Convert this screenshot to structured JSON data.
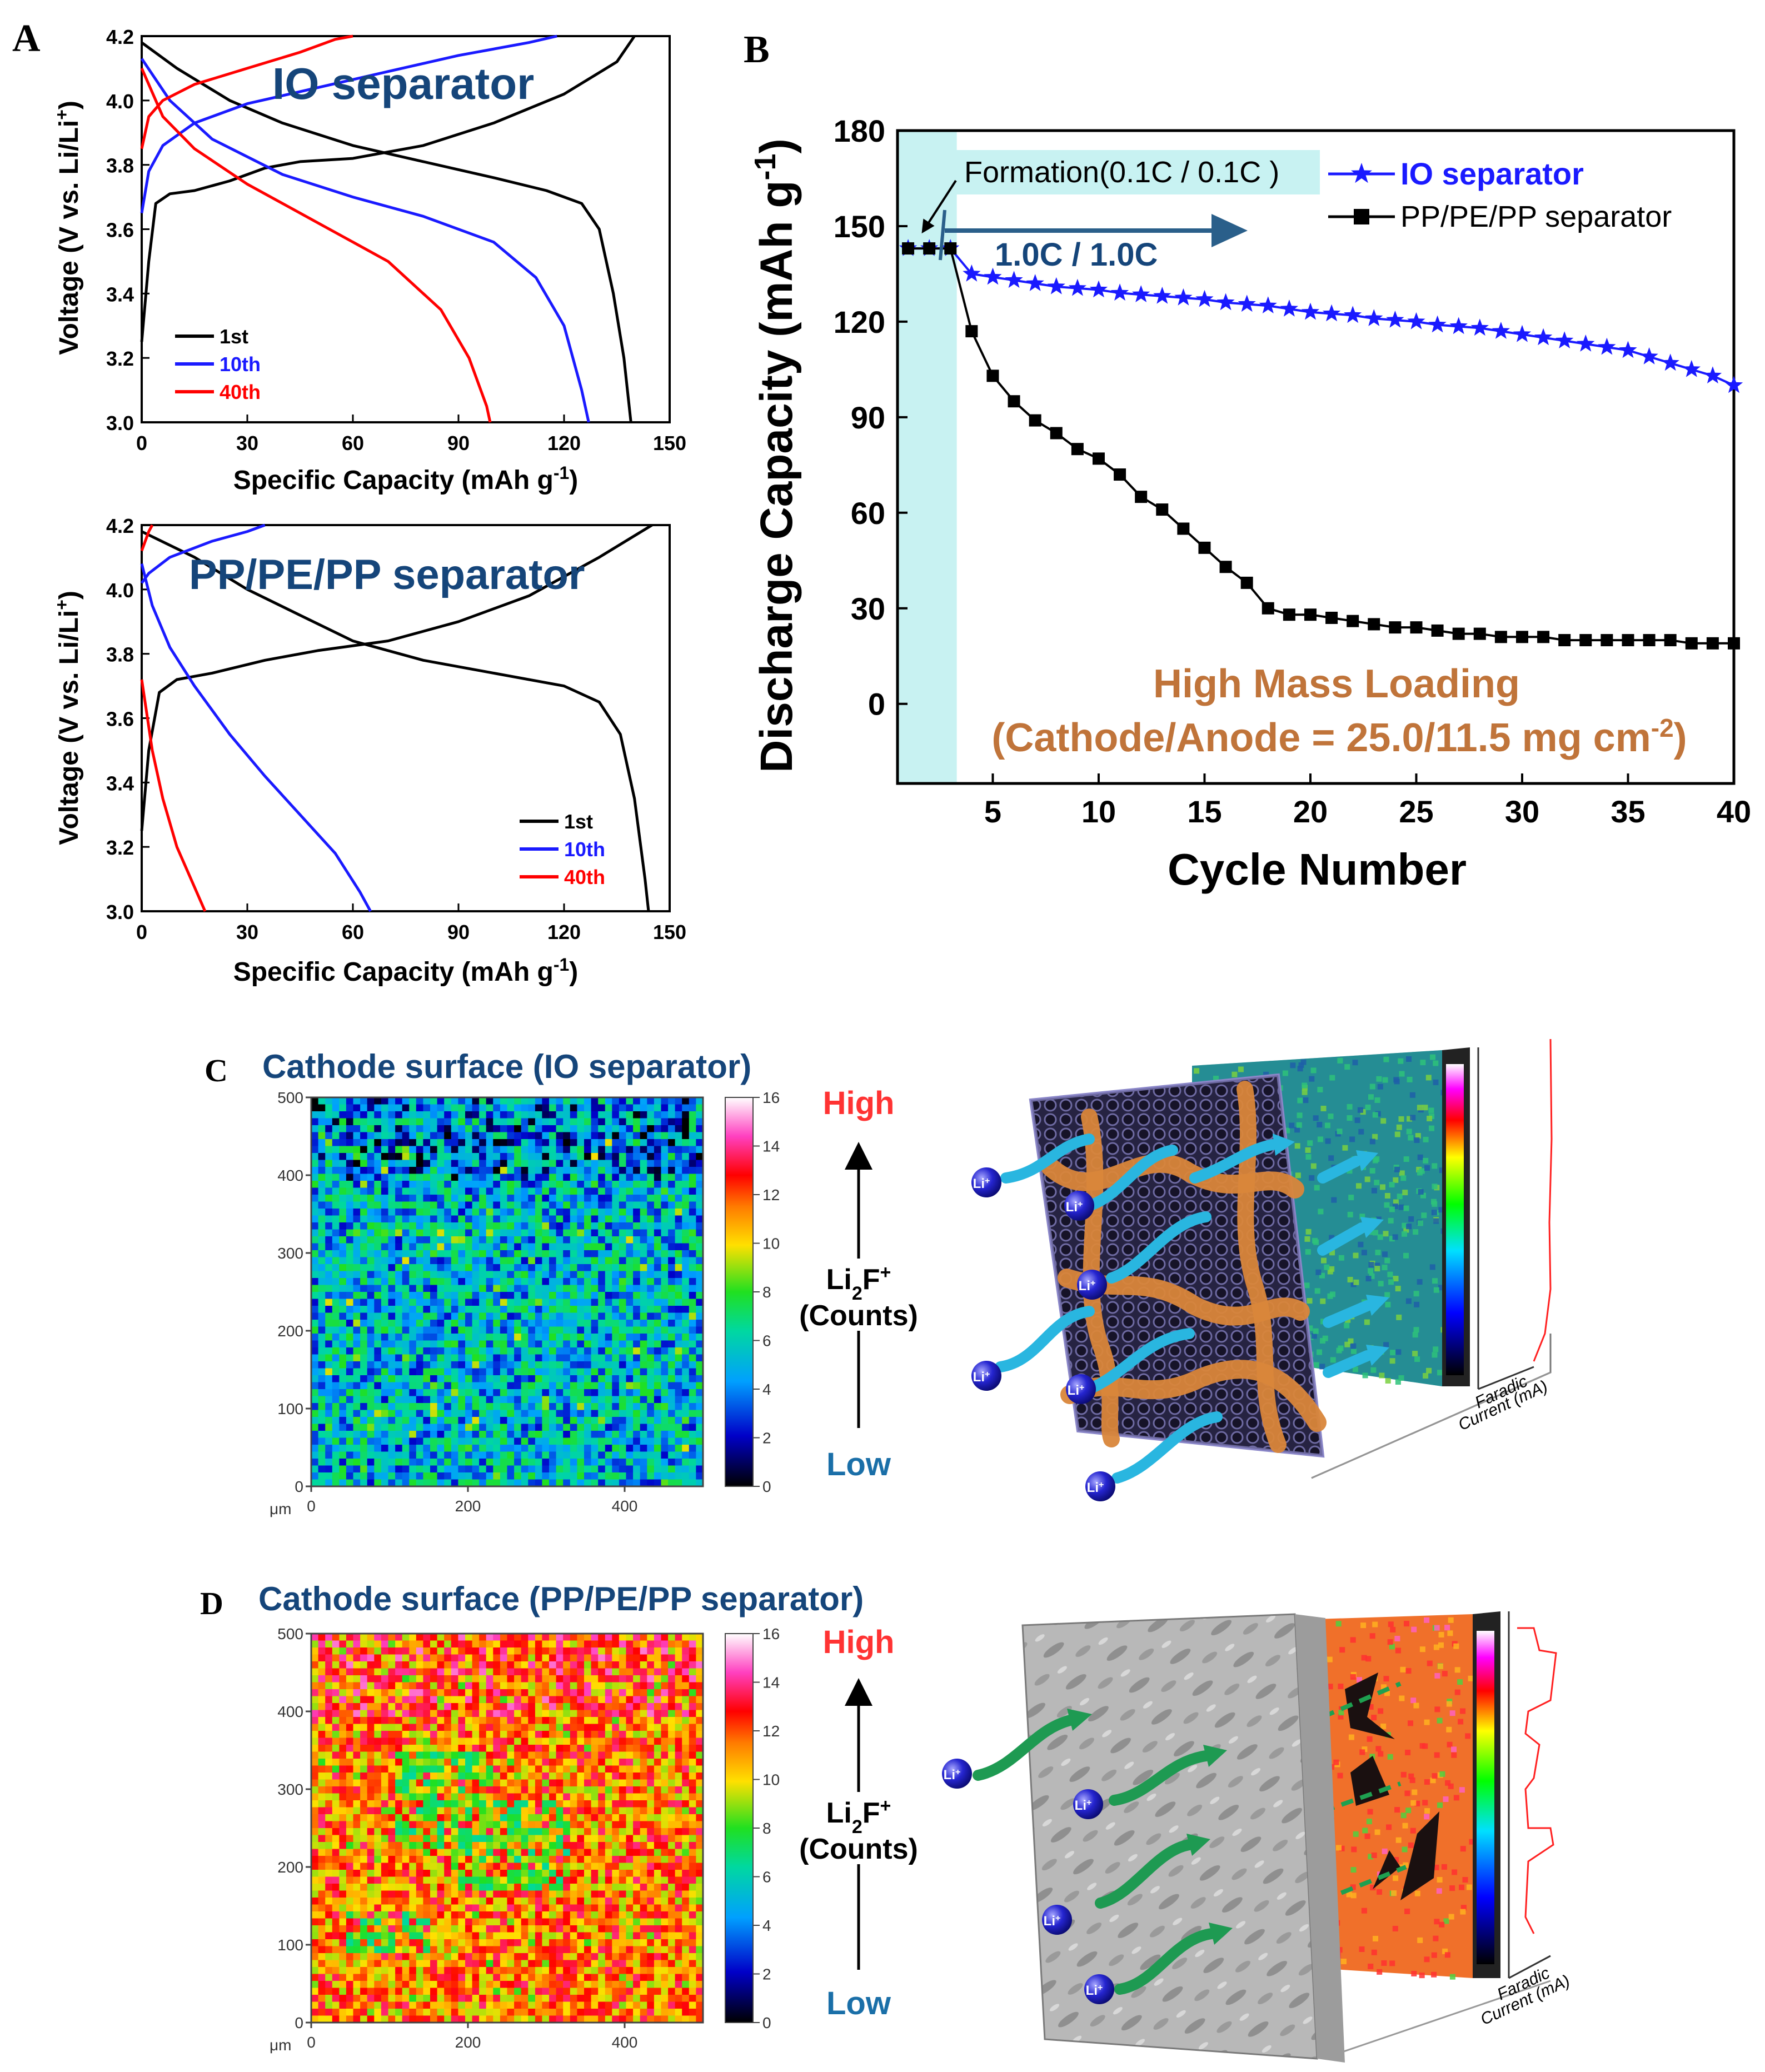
{
  "panel_labels": {
    "a": "A",
    "b": "B",
    "c": "C",
    "d": "D"
  },
  "chart_data": [
    {
      "id": "A1",
      "type": "line",
      "title": "IO separator",
      "xlabel": "Specific Capacity (mAh g",
      "xlabel_sup": "-1",
      "xlabel_end": ")",
      "ylabel": "Voltage (V vs. Li/Li",
      "ylabel_sup": "+",
      "ylabel_end": ")",
      "xlim": [
        0,
        150
      ],
      "ylim": [
        3.0,
        4.2
      ],
      "xticks": [
        0,
        30,
        60,
        90,
        120,
        150
      ],
      "yticks": [
        3.0,
        3.2,
        3.4,
        3.6,
        3.8,
        4.0,
        4.2
      ],
      "legend": {
        "position": "bottom-left",
        "entries": [
          "1st",
          "10th",
          "40th"
        ]
      },
      "series": [
        {
          "name": "1st charge",
          "color": "#000000",
          "points": [
            [
              0,
              3.25
            ],
            [
              2,
              3.5
            ],
            [
              4,
              3.68
            ],
            [
              8,
              3.71
            ],
            [
              15,
              3.72
            ],
            [
              25,
              3.75
            ],
            [
              35,
              3.79
            ],
            [
              45,
              3.81
            ],
            [
              60,
              3.82
            ],
            [
              80,
              3.86
            ],
            [
              100,
              3.93
            ],
            [
              120,
              4.02
            ],
            [
              135,
              4.12
            ],
            [
              140,
              4.2
            ]
          ]
        },
        {
          "name": "1st discharge",
          "color": "#000000",
          "points": [
            [
              0,
              4.18
            ],
            [
              10,
              4.1
            ],
            [
              25,
              4.0
            ],
            [
              40,
              3.93
            ],
            [
              60,
              3.86
            ],
            [
              80,
              3.81
            ],
            [
              100,
              3.76
            ],
            [
              115,
              3.72
            ],
            [
              125,
              3.68
            ],
            [
              130,
              3.6
            ],
            [
              134,
              3.4
            ],
            [
              137,
              3.2
            ],
            [
              139,
              3.0
            ]
          ]
        },
        {
          "name": "10th charge",
          "color": "#1a1aff",
          "points": [
            [
              0,
              3.65
            ],
            [
              2,
              3.78
            ],
            [
              6,
              3.86
            ],
            [
              15,
              3.93
            ],
            [
              30,
              3.99
            ],
            [
              50,
              4.04
            ],
            [
              70,
              4.09
            ],
            [
              90,
              4.14
            ],
            [
              110,
              4.18
            ],
            [
              118,
              4.2
            ]
          ]
        },
        {
          "name": "10th discharge",
          "color": "#1a1aff",
          "points": [
            [
              0,
              4.13
            ],
            [
              8,
              4.0
            ],
            [
              20,
              3.88
            ],
            [
              40,
              3.77
            ],
            [
              60,
              3.7
            ],
            [
              80,
              3.64
            ],
            [
              100,
              3.56
            ],
            [
              112,
              3.45
            ],
            [
              120,
              3.3
            ],
            [
              125,
              3.1
            ],
            [
              127,
              3.0
            ]
          ]
        },
        {
          "name": "40th charge",
          "color": "#ff0000",
          "points": [
            [
              0,
              3.85
            ],
            [
              2,
              3.95
            ],
            [
              6,
              4.0
            ],
            [
              15,
              4.05
            ],
            [
              30,
              4.1
            ],
            [
              45,
              4.15
            ],
            [
              55,
              4.19
            ],
            [
              60,
              4.2
            ]
          ]
        },
        {
          "name": "40th discharge",
          "color": "#ff0000",
          "points": [
            [
              0,
              4.1
            ],
            [
              6,
              3.95
            ],
            [
              15,
              3.85
            ],
            [
              30,
              3.74
            ],
            [
              50,
              3.62
            ],
            [
              70,
              3.5
            ],
            [
              85,
              3.35
            ],
            [
              93,
              3.2
            ],
            [
              98,
              3.05
            ],
            [
              99,
              3.0
            ]
          ]
        }
      ]
    },
    {
      "id": "A2",
      "type": "line",
      "title": "PP/PE/PP separator",
      "xlabel": "Specific Capacity (mAh g",
      "xlabel_sup": "-1",
      "xlabel_end": ")",
      "ylabel": "Voltage (V vs. Li/Li",
      "ylabel_sup": "+",
      "ylabel_end": ")",
      "xlim": [
        0,
        150
      ],
      "ylim": [
        3.0,
        4.2
      ],
      "xticks": [
        0,
        30,
        60,
        90,
        120,
        150
      ],
      "yticks": [
        3.0,
        3.2,
        3.4,
        3.6,
        3.8,
        4.0,
        4.2
      ],
      "legend": {
        "position": "bottom-right",
        "entries": [
          "1st",
          "10th",
          "40th"
        ]
      },
      "series": [
        {
          "name": "1st charge",
          "color": "#000000",
          "points": [
            [
              0,
              3.25
            ],
            [
              2,
              3.5
            ],
            [
              5,
              3.68
            ],
            [
              10,
              3.72
            ],
            [
              20,
              3.74
            ],
            [
              35,
              3.78
            ],
            [
              50,
              3.81
            ],
            [
              70,
              3.84
            ],
            [
              90,
              3.9
            ],
            [
              110,
              3.98
            ],
            [
              130,
              4.1
            ],
            [
              145,
              4.2
            ]
          ]
        },
        {
          "name": "1st discharge",
          "color": "#000000",
          "points": [
            [
              0,
              4.18
            ],
            [
              15,
              4.1
            ],
            [
              30,
              4.0
            ],
            [
              45,
              3.92
            ],
            [
              60,
              3.84
            ],
            [
              80,
              3.78
            ],
            [
              100,
              3.74
            ],
            [
              120,
              3.7
            ],
            [
              130,
              3.65
            ],
            [
              136,
              3.55
            ],
            [
              140,
              3.35
            ],
            [
              143,
              3.1
            ],
            [
              144,
              3.0
            ]
          ]
        },
        {
          "name": "10th charge",
          "color": "#1a1aff",
          "points": [
            [
              0,
              4.02
            ],
            [
              2,
              4.05
            ],
            [
              8,
              4.1
            ],
            [
              20,
              4.15
            ],
            [
              30,
              4.18
            ],
            [
              35,
              4.2
            ]
          ]
        },
        {
          "name": "10th discharge",
          "color": "#1a1aff",
          "points": [
            [
              0,
              4.08
            ],
            [
              3,
              3.95
            ],
            [
              8,
              3.82
            ],
            [
              15,
              3.7
            ],
            [
              25,
              3.55
            ],
            [
              35,
              3.42
            ],
            [
              45,
              3.3
            ],
            [
              55,
              3.18
            ],
            [
              62,
              3.06
            ],
            [
              65,
              3.0
            ]
          ]
        },
        {
          "name": "40th charge",
          "color": "#ff0000",
          "points": [
            [
              0,
              4.12
            ],
            [
              2,
              4.18
            ],
            [
              3,
              4.2
            ]
          ]
        },
        {
          "name": "40th discharge",
          "color": "#ff0000",
          "points": [
            [
              0,
              3.72
            ],
            [
              3,
              3.5
            ],
            [
              6,
              3.35
            ],
            [
              10,
              3.2
            ],
            [
              14,
              3.1
            ],
            [
              18,
              3.0
            ]
          ]
        }
      ]
    },
    {
      "id": "B",
      "type": "line",
      "xlabel": "Cycle Number",
      "ylabel": "Discharge Capacity (mAh g",
      "ylabel_sup": "-1",
      "ylabel_end": ")",
      "xlim": [
        0.5,
        40
      ],
      "ylim": [
        -25,
        180
      ],
      "xticks": [
        5,
        10,
        15,
        20,
        25,
        30,
        35,
        40
      ],
      "yticks": [
        0,
        30,
        60,
        90,
        120,
        150,
        180
      ],
      "formation_label": "Formation(0.1C / 0.1C )",
      "rate_label": "1.0C / 1.0C",
      "annotation_line1": "High Mass Loading",
      "annotation_line2": "(Cathode/Anode = 25.0/11.5 mg cm",
      "annotation_sup": "-2",
      "annotation_end": ")",
      "legend": {
        "position": "top-right",
        "entries": [
          "IO separator",
          "PP/PE/PP separator"
        ]
      },
      "x": [
        1,
        2,
        3,
        4,
        5,
        6,
        7,
        8,
        9,
        10,
        11,
        12,
        13,
        14,
        15,
        16,
        17,
        18,
        19,
        20,
        21,
        22,
        23,
        24,
        25,
        26,
        27,
        28,
        29,
        30,
        31,
        32,
        33,
        34,
        35,
        36,
        37,
        38,
        39,
        40
      ],
      "series": [
        {
          "name": "IO separator",
          "color": "#1a1aff",
          "marker": "star",
          "values": [
            143,
            143,
            143,
            135,
            134,
            133,
            132,
            131,
            130.5,
            130,
            129,
            128.5,
            128,
            127.5,
            127,
            126,
            125.5,
            125,
            124,
            123,
            122.5,
            122,
            121,
            120.5,
            120,
            119,
            118.5,
            118,
            117,
            116,
            115,
            114,
            113,
            112,
            111,
            109,
            107,
            105,
            103,
            100
          ]
        },
        {
          "name": "PP/PE/PP separator",
          "color": "#000000",
          "marker": "square",
          "values": [
            143,
            143,
            143,
            117,
            103,
            95,
            89,
            85,
            80,
            77,
            72,
            65,
            61,
            55,
            49,
            43,
            38,
            30,
            28,
            28,
            27,
            26,
            25,
            24,
            24,
            23,
            22,
            22,
            21,
            21,
            21,
            20,
            20,
            20,
            20,
            20,
            20,
            19,
            19,
            19
          ]
        }
      ]
    },
    {
      "id": "C_map",
      "type": "heatmap",
      "title": "Cathode surface (IO separator)",
      "xlabel_unit": "μm",
      "xticks": [
        0,
        200,
        400
      ],
      "yticks": [
        0,
        100,
        200,
        300,
        400,
        500
      ],
      "colorbar_ticks": [
        0,
        2,
        4,
        6,
        8,
        10,
        12,
        14,
        16
      ],
      "dominant_count_range": [
        2,
        8
      ]
    },
    {
      "id": "D_map",
      "type": "heatmap",
      "title": "Cathode surface (PP/PE/PP separator)",
      "xlabel_unit": "μm",
      "xticks": [
        0,
        200,
        400
      ],
      "yticks": [
        0,
        100,
        200,
        300,
        400,
        500
      ],
      "colorbar_ticks": [
        0,
        2,
        4,
        6,
        8,
        10,
        12,
        14,
        16
      ],
      "dominant_count_range": [
        9,
        14
      ]
    }
  ],
  "scale": {
    "high": "High",
    "low": "Low",
    "species_a": "Li",
    "species_sub": "2",
    "species_b": "F",
    "species_sup": "+",
    "counts": "(Counts)"
  },
  "diagram": {
    "ion_label": "Li",
    "ion_sup": "+",
    "current_label_1": "Faradic",
    "current_label_2": "Current (mA)"
  },
  "colors": {
    "title_blue": "#15457a",
    "annotation_brown": "#c0743a",
    "arrow_blue": "#2a5f8a",
    "formation_band": "#c8f2f2",
    "high_red": "#ff3333",
    "low_blue": "#1a6fa8"
  }
}
